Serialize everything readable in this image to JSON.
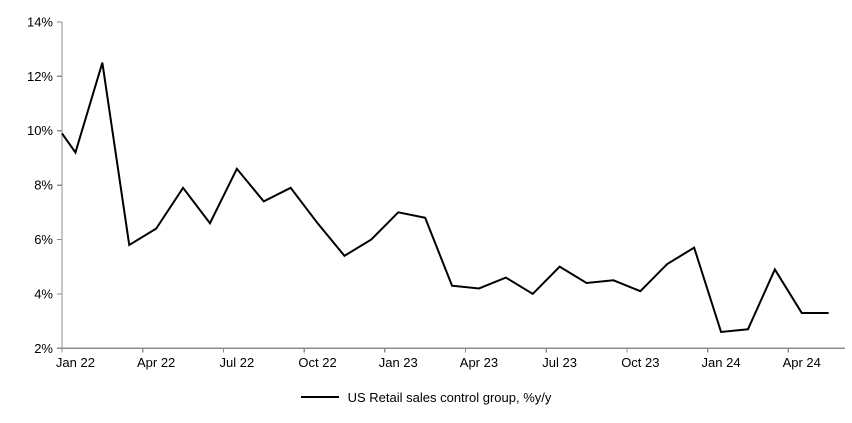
{
  "chart_data": {
    "type": "line",
    "title": "",
    "legend": "US Retail sales control group, %y/y",
    "series_name": "US Retail sales control group, %y/y",
    "x": [
      "Jan 22",
      "Feb 22",
      "Mar 22",
      "Apr 22",
      "May 22",
      "Jun 22",
      "Jul 22",
      "Aug 22",
      "Sep 22",
      "Oct 22",
      "Nov 22",
      "Dec 22",
      "Jan 23",
      "Feb 23",
      "Mar 23",
      "Apr 23",
      "May 23",
      "Jun 23",
      "Jul 23",
      "Aug 23",
      "Sep 23",
      "Oct 23",
      "Nov 23",
      "Dec 23",
      "Jan 24",
      "Feb 24",
      "Mar 24",
      "Apr 24",
      "May 24"
    ],
    "values": [
      9.2,
      12.5,
      5.8,
      6.4,
      7.9,
      6.6,
      8.6,
      7.4,
      7.9,
      6.6,
      5.4,
      6.0,
      7.0,
      6.8,
      4.3,
      4.2,
      4.6,
      4.0,
      5.0,
      4.4,
      4.5,
      4.1,
      5.1,
      5.7,
      2.6,
      2.7,
      4.9,
      3.3,
      3.3
    ],
    "axis_entry_value": 9.9,
    "ylim": [
      2,
      14
    ],
    "y_tick_step": 2,
    "y_tick_labels": [
      "2%",
      "4%",
      "6%",
      "8%",
      "10%",
      "12%",
      "14%"
    ],
    "x_tick_every": 3,
    "x_tick_labels": [
      "Jan 22",
      "Apr 22",
      "Jul 22",
      "Oct 22",
      "Jan 23",
      "Apr 23",
      "Jul 23",
      "Oct 23",
      "Jan 24",
      "Apr 24"
    ],
    "grid": false,
    "legend_position": "bottom-center",
    "colors": {
      "line": "#000000",
      "axis": "#8c8c8c",
      "text": "#000000",
      "background": "#ffffff"
    }
  }
}
